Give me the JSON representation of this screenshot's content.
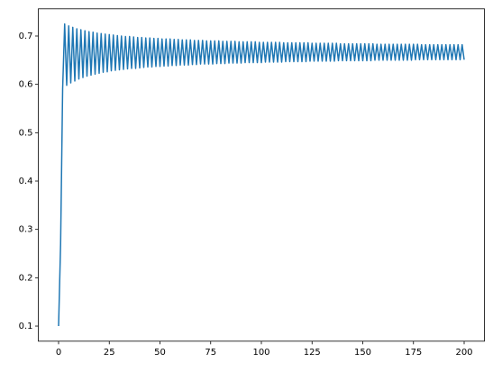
{
  "chart_data": {
    "type": "line",
    "color": "#1f77b4",
    "x": [
      0,
      1,
      2,
      3,
      4,
      5,
      6,
      7,
      8,
      9,
      10,
      11,
      12,
      13,
      14,
      15,
      16,
      17,
      18,
      19,
      20,
      21,
      22,
      23,
      24,
      25,
      26,
      27,
      28,
      29,
      30,
      31,
      32,
      33,
      34,
      35,
      36,
      37,
      38,
      39,
      40,
      41,
      42,
      43,
      44,
      45,
      46,
      47,
      48,
      49,
      50,
      51,
      52,
      53,
      54,
      55,
      56,
      57,
      58,
      59,
      60,
      61,
      62,
      63,
      64,
      65,
      66,
      67,
      68,
      69,
      70,
      71,
      72,
      73,
      74,
      75,
      76,
      77,
      78,
      79,
      80,
      81,
      82,
      83,
      84,
      85,
      86,
      87,
      88,
      89,
      90,
      91,
      92,
      93,
      94,
      95,
      96,
      97,
      98,
      99,
      100,
      101,
      102,
      103,
      104,
      105,
      106,
      107,
      108,
      109,
      110,
      111,
      112,
      113,
      114,
      115,
      116,
      117,
      118,
      119,
      120,
      121,
      122,
      123,
      124,
      125,
      126,
      127,
      128,
      129,
      130,
      131,
      132,
      133,
      134,
      135,
      136,
      137,
      138,
      139,
      140,
      141,
      142,
      143,
      144,
      145,
      146,
      147,
      148,
      149,
      150,
      151,
      152,
      153,
      154,
      155,
      156,
      157,
      158,
      159,
      160,
      161,
      162,
      163,
      164,
      165,
      166,
      167,
      168,
      169,
      170,
      171,
      172,
      173,
      174,
      175,
      176,
      177,
      178,
      179,
      180,
      181,
      182,
      183,
      184,
      185,
      186,
      187,
      188,
      189,
      190,
      191,
      192,
      193,
      194,
      195,
      196,
      197,
      198,
      199,
      200
    ],
    "values": [
      0.1,
      0.27,
      0.591,
      0.725,
      0.598,
      0.721,
      0.603,
      0.718,
      0.607,
      0.715,
      0.611,
      0.713,
      0.614,
      0.711,
      0.617,
      0.709,
      0.619,
      0.708,
      0.621,
      0.706,
      0.623,
      0.705,
      0.625,
      0.704,
      0.626,
      0.703,
      0.628,
      0.702,
      0.629,
      0.701,
      0.63,
      0.7,
      0.631,
      0.699,
      0.632,
      0.699,
      0.633,
      0.698,
      0.633,
      0.697,
      0.634,
      0.697,
      0.635,
      0.696,
      0.636,
      0.696,
      0.636,
      0.695,
      0.637,
      0.695,
      0.637,
      0.694,
      0.638,
      0.694,
      0.638,
      0.694,
      0.639,
      0.693,
      0.639,
      0.693,
      0.64,
      0.692,
      0.64,
      0.692,
      0.64,
      0.692,
      0.641,
      0.691,
      0.641,
      0.691,
      0.642,
      0.691,
      0.642,
      0.69,
      0.642,
      0.69,
      0.642,
      0.69,
      0.643,
      0.69,
      0.643,
      0.689,
      0.643,
      0.689,
      0.644,
      0.689,
      0.644,
      0.689,
      0.644,
      0.688,
      0.644,
      0.688,
      0.645,
      0.688,
      0.645,
      0.688,
      0.645,
      0.688,
      0.645,
      0.687,
      0.645,
      0.687,
      0.646,
      0.687,
      0.646,
      0.687,
      0.646,
      0.687,
      0.646,
      0.687,
      0.646,
      0.686,
      0.647,
      0.686,
      0.647,
      0.686,
      0.647,
      0.686,
      0.647,
      0.686,
      0.647,
      0.686,
      0.647,
      0.686,
      0.648,
      0.685,
      0.648,
      0.685,
      0.648,
      0.685,
      0.648,
      0.685,
      0.648,
      0.685,
      0.648,
      0.685,
      0.648,
      0.685,
      0.649,
      0.684,
      0.649,
      0.684,
      0.649,
      0.684,
      0.649,
      0.684,
      0.649,
      0.684,
      0.649,
      0.684,
      0.649,
      0.684,
      0.649,
      0.684,
      0.649,
      0.684,
      0.65,
      0.683,
      0.65,
      0.683,
      0.65,
      0.683,
      0.65,
      0.683,
      0.65,
      0.683,
      0.65,
      0.683,
      0.65,
      0.683,
      0.65,
      0.683,
      0.65,
      0.683,
      0.65,
      0.683,
      0.651,
      0.683,
      0.651,
      0.682,
      0.651,
      0.682,
      0.651,
      0.682,
      0.651,
      0.682,
      0.651,
      0.682,
      0.651,
      0.682,
      0.651,
      0.682,
      0.651,
      0.682,
      0.651,
      0.682,
      0.651,
      0.682,
      0.651,
      0.682,
      0.651
    ],
    "xlim": [
      -10,
      210
    ],
    "xticks": [
      0,
      25,
      50,
      75,
      100,
      125,
      150,
      175,
      200
    ],
    "ylim": [
      0.06875,
      0.75625
    ],
    "yticks": [
      0.1,
      0.2,
      0.3,
      0.4,
      0.5,
      0.6,
      0.7
    ]
  }
}
